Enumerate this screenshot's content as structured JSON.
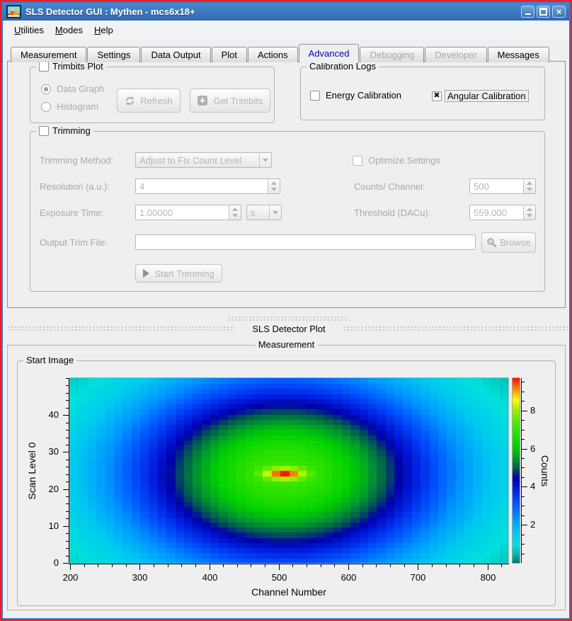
{
  "window": {
    "title": "SLS Detector GUI : Mythen - mcs6x18+",
    "controls": {
      "minimize": "minimize",
      "maximize": "maximize",
      "close": "close"
    }
  },
  "menu": {
    "items": [
      {
        "label": "Utilities",
        "accel_index": 0
      },
      {
        "label": "Modes",
        "accel_index": 0
      },
      {
        "label": "Help",
        "accel_index": 0
      }
    ]
  },
  "tabs": [
    {
      "label": "Measurement",
      "state": "normal"
    },
    {
      "label": "Settings",
      "state": "normal"
    },
    {
      "label": "Data Output",
      "state": "normal"
    },
    {
      "label": "Plot",
      "state": "normal"
    },
    {
      "label": "Actions",
      "state": "normal"
    },
    {
      "label": "Advanced",
      "state": "selected"
    },
    {
      "label": "Debugging",
      "state": "disabled"
    },
    {
      "label": "Developer",
      "state": "disabled"
    },
    {
      "label": "Messages",
      "state": "normal"
    }
  ],
  "advanced_tab": {
    "trimbits_plot": {
      "title": "Trimbits Plot",
      "checked": false,
      "options": [
        {
          "label": "Data Graph",
          "selected": true
        },
        {
          "label": "Histogram",
          "selected": false
        }
      ],
      "refresh_label": "Refresh",
      "get_trimbits_label": "Get Trimbits"
    },
    "calibration_logs": {
      "title": "Calibration Logs",
      "energy": {
        "label": "Energy Calibration",
        "checked": false
      },
      "angular": {
        "label": "Angular Calibration",
        "checked": true
      }
    },
    "trimming": {
      "title": "Trimming",
      "checked": false,
      "method_label": "Trimming Method:",
      "method_value": "Adjust to Fix Count Level",
      "optimize_label": "Optimize Settings",
      "optimize_checked": false,
      "resolution_label": "Resolution (a.u.):",
      "resolution_value": "4",
      "counts_label": "Counts/ Channel:",
      "counts_value": "500",
      "exposure_label": "Exposure Time:",
      "exposure_value": "1.00000",
      "exposure_unit": "s",
      "threshold_label": "Threshold (DACu):",
      "threshold_value": "559.000",
      "output_label": "Output Trim File:",
      "output_value": "",
      "browse_label": "Browse",
      "start_label": "Start Trimming"
    }
  },
  "plot_dock": {
    "title": "SLS Detector Plot"
  },
  "measurement_group": {
    "title": "Measurement"
  },
  "start_image_group": {
    "title": "Start Image"
  },
  "chart_data": {
    "type": "heatmap",
    "title": "Start Image",
    "x_axis": {
      "label": "Channel Number",
      "range": [
        200,
        830
      ],
      "major_ticks": [
        200,
        300,
        400,
        500,
        600,
        700,
        800
      ],
      "minor_step": 20
    },
    "y_axis": {
      "label": "Scan Level 0",
      "range": [
        0,
        50
      ],
      "major_ticks": [
        0,
        10,
        20,
        30,
        40
      ],
      "minor_step": 2
    },
    "colorbar": {
      "label": "Counts",
      "range": [
        0,
        9.7
      ],
      "major_ticks": [
        2,
        4,
        6,
        8
      ],
      "minor_step": 0.5
    },
    "grid": {
      "cols": 50,
      "rows": 36
    },
    "model": {
      "description": "counts(channel, scan_level) = background + broad elliptical Gaussian + narrow hotspot Gaussian",
      "background": 0.05,
      "center": {
        "channel": 508,
        "scan_level": 24.3
      },
      "broad": {
        "amplitude": 7.1,
        "sigma_channel": 170,
        "sigma_level": 19
      },
      "hotspot": {
        "amplitude": 2.55,
        "sigma_channel": 20,
        "sigma_level": 1.0
      },
      "peak_counts": 9.7
    },
    "colormap": [
      [
        0.0,
        "#007a74"
      ],
      [
        0.04,
        "#00b4aa"
      ],
      [
        0.09,
        "#00e0dc"
      ],
      [
        0.16,
        "#00c8f0"
      ],
      [
        0.24,
        "#0096ff"
      ],
      [
        0.32,
        "#0055ff"
      ],
      [
        0.4,
        "#001ee0"
      ],
      [
        0.46,
        "#0000a8"
      ],
      [
        0.51,
        "#005a50"
      ],
      [
        0.57,
        "#00a028"
      ],
      [
        0.63,
        "#00d200"
      ],
      [
        0.74,
        "#3ce800"
      ],
      [
        0.83,
        "#a0f000"
      ],
      [
        0.885,
        "#ffff00"
      ],
      [
        0.93,
        "#ffa000"
      ],
      [
        0.97,
        "#ff5000"
      ],
      [
        1.0,
        "#ff1400"
      ]
    ]
  }
}
